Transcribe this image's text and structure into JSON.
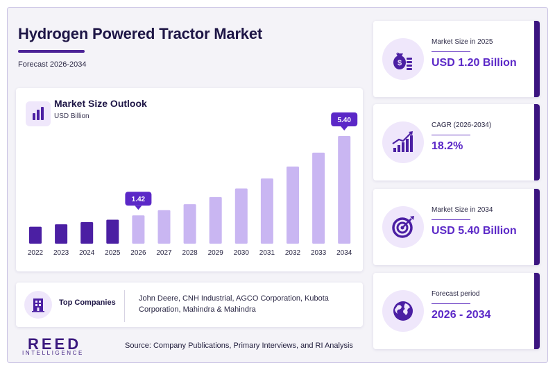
{
  "header": {
    "title": "Hydrogen Powered Tractor Market",
    "subtitle": "Forecast 2026-2034"
  },
  "chart_data": {
    "type": "bar",
    "title": "Market Size Outlook",
    "unit": "USD Billion",
    "categories": [
      "2022",
      "2023",
      "2024",
      "2025",
      "2026",
      "2027",
      "2028",
      "2029",
      "2030",
      "2031",
      "2032",
      "2033",
      "2034"
    ],
    "values": [
      0.85,
      0.97,
      1.08,
      1.2,
      1.42,
      1.68,
      1.98,
      2.34,
      2.77,
      3.27,
      3.87,
      4.57,
      5.4
    ],
    "callouts": [
      {
        "category": "2026",
        "label": "1.42"
      },
      {
        "category": "2034",
        "label": "5.40"
      }
    ],
    "ylim": [
      0,
      5.4
    ],
    "grid": false,
    "colors": {
      "historical": "#4b1fa3",
      "forecast": "#c9b6f2",
      "callout": "#5b28c7"
    }
  },
  "companies": {
    "label": "Top Companies",
    "list": "John Deere, CNH Industrial, AGCO Corporation, Kubota Corporation, Mahindra & Mahindra"
  },
  "kpis": [
    {
      "label": "Market Size in 2025",
      "value": "USD 1.20 Billion",
      "icon": "money-bag-icon"
    },
    {
      "label": "CAGR (2026-2034)",
      "value": "18.2%",
      "icon": "growth-chart-icon"
    },
    {
      "label": "Market Size in 2034",
      "value": "USD 5.40 Billion",
      "icon": "target-icon"
    },
    {
      "label": "Forecast period",
      "value": "2026 - 2034",
      "icon": "globe-icon"
    }
  ],
  "footer": {
    "logo_main": "REED",
    "logo_sub": "INTELLIGENCE",
    "source": "Source: Company Publications, Primary Interviews, and RI Analysis"
  },
  "colors": {
    "brand": "#3b1480",
    "accent": "#5b28c7",
    "icon_bg": "#efe7fb"
  }
}
